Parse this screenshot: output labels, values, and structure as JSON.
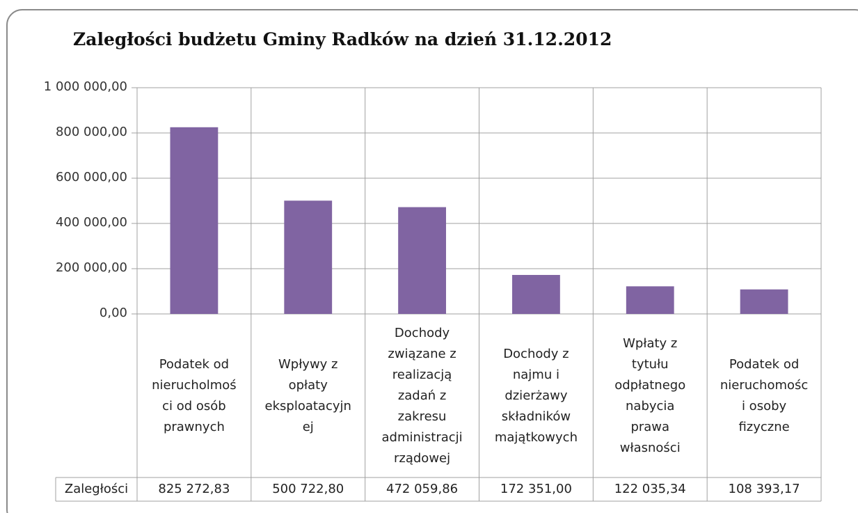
{
  "chart_data": {
    "type": "bar",
    "title": "Zaległości budżetu Gminy Radków na dzień 31.12.2012",
    "categories": [
      "Podatek od nierucholmości od osób prawnych",
      "Wpływy z opłaty eksploatacyjnej",
      "Dochody związane z realizacją zadań z zakresu administracji rządowej",
      "Dochody z najmu i dzierżawy składników majątkowych",
      "Wpłaty z tytułu odpłatnego nabycia prawa własności",
      "Podatek od nieruchomości osoby fizyczne"
    ],
    "series": [
      {
        "name": "Zaległości",
        "color": "#8064a2",
        "values": [
          825272.83,
          500722.8,
          472059.86,
          172351.0,
          122035.34,
          108393.17
        ],
        "value_labels": [
          "825 272,83",
          "500 722,80",
          "472 059,86",
          "172 351,00",
          "122 035,34",
          "108 393,17"
        ]
      }
    ],
    "ylim": [
      0,
      1000000
    ],
    "yticks": [
      {
        "value": 0,
        "label": "0,00"
      },
      {
        "value": 200000,
        "label": "200 000,00"
      },
      {
        "value": 400000,
        "label": "400 000,00"
      },
      {
        "value": 600000,
        "label": "600 000,00"
      },
      {
        "value": 800000,
        "label": "800 000,00"
      },
      {
        "value": 1000000,
        "label": "1 000 000,00"
      }
    ],
    "grid": true
  }
}
